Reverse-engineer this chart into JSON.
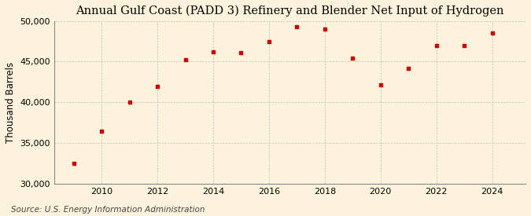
{
  "title": "Annual Gulf Coast (PADD 3) Refinery and Blender Net Input of Hydrogen",
  "ylabel": "Thousand Barrels",
  "source": "Source: U.S. Energy Information Administration",
  "years": [
    2009,
    2010,
    2011,
    2012,
    2013,
    2014,
    2015,
    2016,
    2017,
    2018,
    2019,
    2020,
    2021,
    2022,
    2023,
    2024
  ],
  "values": [
    32500,
    36500,
    40000,
    42000,
    45200,
    46200,
    46100,
    47500,
    49300,
    49000,
    45400,
    42200,
    44200,
    47000,
    47000,
    48500
  ],
  "marker_color": "#CC0000",
  "background_color": "#FDF3DC",
  "grid_color": "#BBBBBB",
  "ylim": [
    30000,
    50000
  ],
  "yticks": [
    30000,
    35000,
    40000,
    45000,
    50000
  ],
  "xticks": [
    2010,
    2012,
    2014,
    2016,
    2018,
    2020,
    2022,
    2024
  ],
  "title_fontsize": 10.5,
  "label_fontsize": 8.5,
  "tick_fontsize": 8,
  "source_fontsize": 7.5,
  "xlim_left": 2008.3,
  "xlim_right": 2025.2
}
